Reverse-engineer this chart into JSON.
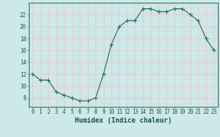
{
  "x": [
    0,
    1,
    2,
    3,
    4,
    5,
    6,
    7,
    8,
    9,
    10,
    11,
    12,
    13,
    14,
    15,
    16,
    17,
    18,
    19,
    20,
    21,
    22,
    23
  ],
  "y": [
    12,
    11,
    11,
    9,
    8.5,
    8,
    7.5,
    7.5,
    8,
    12,
    17,
    20,
    21,
    21,
    23,
    23,
    22.5,
    22.5,
    23,
    23,
    22,
    21,
    18,
    16
  ],
  "line_color": "#2d6b5e",
  "marker_color": "#2d6b5e",
  "bg_color": "#cce8e8",
  "grid_major_color": "#e8c8c8",
  "grid_minor_color": "#e8c8c8",
  "xlabel": "Humidex (Indice chaleur)",
  "ylim": [
    6.5,
    24
  ],
  "xlim": [
    -0.5,
    23.5
  ],
  "yticks": [
    8,
    10,
    12,
    14,
    16,
    18,
    20,
    22
  ],
  "xticks": [
    0,
    1,
    2,
    3,
    4,
    5,
    6,
    7,
    8,
    9,
    10,
    11,
    12,
    13,
    14,
    15,
    16,
    17,
    18,
    19,
    20,
    21,
    22,
    23
  ],
  "tick_fontsize": 5.5,
  "xlabel_fontsize": 7,
  "marker_size": 2.0,
  "linewidth": 0.9
}
